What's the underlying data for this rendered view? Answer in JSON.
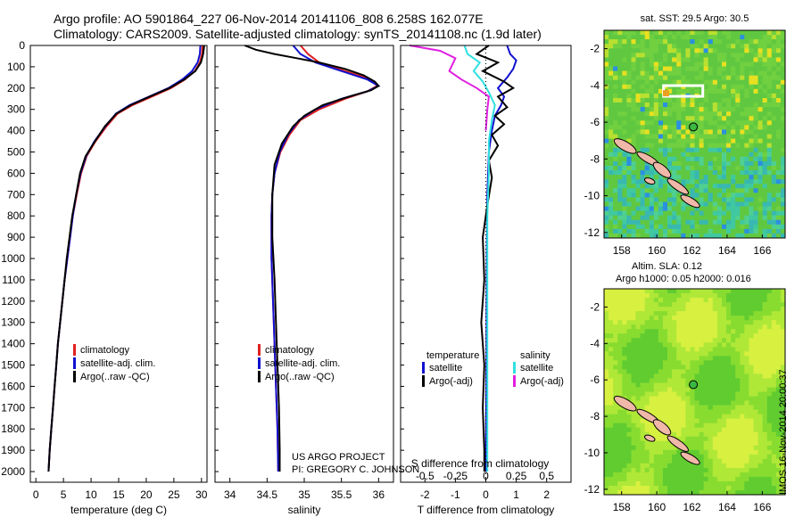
{
  "header": {
    "line1": "Argo profile: AO 5901864_227 06-Nov-2014 20141106_808 6.258S 162.077E",
    "line2": "Climatology: CARS2009. Satellite-adjusted climatology: synTS_20141108.nc (1.9d later)"
  },
  "credit": {
    "line1": "US ARGO PROJECT",
    "line2": "PI: GREGORY C. JOHNSON"
  },
  "stamp": "IMOS 16-Nov-2014 20:00:37",
  "colors": {
    "climatology": "#e02020",
    "satellite": "#1010d0",
    "argo": "#000000",
    "sal_satellite": "#30e0e0",
    "sal_argo": "#e020e0"
  },
  "chart_data": [
    {
      "type": "line",
      "xlabel": "temperature (deg C)",
      "ylabel": "",
      "xlim": [
        -1,
        31
      ],
      "ylim": [
        2050,
        0
      ],
      "y_inverted": true,
      "xticks": [
        0,
        5,
        10,
        15,
        20,
        25,
        30
      ],
      "yticks": [
        0,
        100,
        200,
        300,
        400,
        500,
        600,
        700,
        800,
        900,
        1000,
        1100,
        1200,
        1300,
        1400,
        1500,
        1600,
        1700,
        1800,
        1900,
        2000
      ],
      "legend": [
        "climatology",
        "satellite-adj. clim.",
        "Argo(..raw -QC)"
      ],
      "series": [
        {
          "name": "climatology",
          "color": "#e02020",
          "points": [
            [
              30.2,
              0
            ],
            [
              30.1,
              40
            ],
            [
              29.7,
              80
            ],
            [
              28.8,
              120
            ],
            [
              27.0,
              160
            ],
            [
              24.5,
              200
            ],
            [
              21.0,
              240
            ],
            [
              17.5,
              280
            ],
            [
              14.8,
              320
            ],
            [
              12.8,
              380
            ],
            [
              10.8,
              450
            ],
            [
              9.2,
              520
            ],
            [
              8.2,
              600
            ],
            [
              7.4,
              700
            ],
            [
              6.7,
              800
            ],
            [
              6.2,
              900
            ],
            [
              5.7,
              1000
            ],
            [
              5.2,
              1100
            ],
            [
              4.8,
              1200
            ],
            [
              4.4,
              1300
            ],
            [
              4.0,
              1400
            ],
            [
              3.7,
              1500
            ],
            [
              3.4,
              1600
            ],
            [
              3.1,
              1700
            ],
            [
              2.8,
              1800
            ],
            [
              2.5,
              1900
            ],
            [
              2.3,
              2000
            ]
          ]
        },
        {
          "name": "satellite-adj. clim.",
          "color": "#1010d0",
          "points": [
            [
              29.8,
              0
            ],
            [
              29.7,
              40
            ],
            [
              29.3,
              80
            ],
            [
              28.3,
              120
            ],
            [
              26.5,
              160
            ],
            [
              24.0,
              200
            ],
            [
              20.5,
              240
            ],
            [
              17.0,
              280
            ],
            [
              14.5,
              320
            ],
            [
              12.6,
              380
            ],
            [
              10.6,
              450
            ],
            [
              9.1,
              520
            ],
            [
              8.1,
              600
            ],
            [
              7.3,
              700
            ],
            [
              6.7,
              800
            ],
            [
              6.2,
              900
            ],
            [
              5.7,
              1000
            ],
            [
              5.2,
              1100
            ],
            [
              4.8,
              1200
            ],
            [
              4.4,
              1300
            ],
            [
              4.0,
              1400
            ],
            [
              3.7,
              1500
            ],
            [
              3.4,
              1600
            ],
            [
              3.1,
              1700
            ],
            [
              2.8,
              1800
            ],
            [
              2.5,
              1900
            ],
            [
              2.3,
              2000
            ]
          ]
        },
        {
          "name": "Argo(..raw -QC)",
          "color": "#000000",
          "points": [
            [
              30.5,
              0
            ],
            [
              30.3,
              40
            ],
            [
              29.9,
              80
            ],
            [
              28.9,
              120
            ],
            [
              26.9,
              160
            ],
            [
              24.2,
              200
            ],
            [
              20.6,
              240
            ],
            [
              17.2,
              280
            ],
            [
              14.6,
              320
            ],
            [
              12.5,
              380
            ],
            [
              10.7,
              450
            ],
            [
              9.0,
              520
            ],
            [
              8.0,
              600
            ],
            [
              7.3,
              700
            ],
            [
              6.6,
              800
            ],
            [
              6.1,
              900
            ],
            [
              5.6,
              1000
            ],
            [
              5.2,
              1100
            ],
            [
              4.8,
              1200
            ],
            [
              4.4,
              1300
            ],
            [
              4.0,
              1400
            ],
            [
              3.7,
              1500
            ],
            [
              3.4,
              1600
            ],
            [
              3.1,
              1700
            ],
            [
              2.8,
              1800
            ],
            [
              2.5,
              1900
            ],
            [
              2.3,
              2000
            ]
          ]
        }
      ]
    },
    {
      "type": "line",
      "xlabel": "salinity",
      "xlim": [
        33.8,
        36.2
      ],
      "ylim": [
        2050,
        0
      ],
      "y_inverted": true,
      "xticks": [
        34,
        34.5,
        35,
        35.5,
        36
      ],
      "legend": [
        "climatology",
        "satellite-adj. clim.",
        "Argo(..raw -QC)"
      ],
      "series": [
        {
          "name": "climatology",
          "color": "#e02020",
          "points": [
            [
              34.95,
              0
            ],
            [
              35.05,
              40
            ],
            [
              35.2,
              80
            ],
            [
              35.55,
              120
            ],
            [
              35.9,
              160
            ],
            [
              35.98,
              190
            ],
            [
              35.85,
              215
            ],
            [
              35.55,
              250
            ],
            [
              35.2,
              300
            ],
            [
              34.95,
              350
            ],
            [
              34.8,
              420
            ],
            [
              34.68,
              500
            ],
            [
              34.6,
              600
            ],
            [
              34.57,
              700
            ],
            [
              34.56,
              800
            ],
            [
              34.56,
              1000
            ],
            [
              34.58,
              1200
            ],
            [
              34.6,
              1400
            ],
            [
              34.62,
              1600
            ],
            [
              34.64,
              1800
            ],
            [
              34.65,
              2000
            ]
          ]
        },
        {
          "name": "satellite-adj. clim.",
          "color": "#1010d0",
          "points": [
            [
              34.85,
              0
            ],
            [
              34.95,
              40
            ],
            [
              35.15,
              80
            ],
            [
              35.5,
              120
            ],
            [
              35.85,
              160
            ],
            [
              36.0,
              190
            ],
            [
              35.85,
              215
            ],
            [
              35.5,
              250
            ],
            [
              35.15,
              300
            ],
            [
              34.93,
              350
            ],
            [
              34.78,
              420
            ],
            [
              34.67,
              500
            ],
            [
              34.6,
              600
            ],
            [
              34.57,
              700
            ],
            [
              34.56,
              800
            ],
            [
              34.56,
              1000
            ],
            [
              34.58,
              1200
            ],
            [
              34.6,
              1400
            ],
            [
              34.62,
              1600
            ],
            [
              34.64,
              1800
            ],
            [
              34.65,
              2000
            ]
          ]
        },
        {
          "name": "Argo(..raw -QC)",
          "color": "#000000",
          "points": [
            [
              34.2,
              0
            ],
            [
              34.35,
              20
            ],
            [
              34.6,
              40
            ],
            [
              34.9,
              60
            ],
            [
              35.2,
              80
            ],
            [
              35.55,
              110
            ],
            [
              35.8,
              140
            ],
            [
              35.95,
              170
            ],
            [
              36.0,
              190
            ],
            [
              35.9,
              210
            ],
            [
              35.6,
              240
            ],
            [
              35.25,
              280
            ],
            [
              35.0,
              330
            ],
            [
              34.85,
              380
            ],
            [
              34.7,
              460
            ],
            [
              34.6,
              560
            ],
            [
              34.57,
              700
            ],
            [
              34.57,
              900
            ],
            [
              34.6,
              1100
            ],
            [
              34.62,
              1300
            ],
            [
              34.64,
              1500
            ],
            [
              34.66,
              1700
            ],
            [
              34.67,
              1900
            ],
            [
              34.67,
              2000
            ]
          ]
        }
      ]
    },
    {
      "type": "line",
      "xlabel": "T difference from climatology",
      "xlabel_top": "S difference from climatology",
      "xlim": [
        -2.8,
        2.8
      ],
      "ylim": [
        2050,
        0
      ],
      "y_inverted": true,
      "xticks": [
        -2,
        -1,
        0,
        1,
        2
      ],
      "xticks_top": [
        -0.5,
        -0.25,
        0,
        0.25,
        0.5
      ],
      "legend_titles": [
        "temperature",
        "salinity"
      ],
      "legend": [
        "satellite",
        "Argo(-adj)",
        "satellite",
        "Argo(-adj)"
      ],
      "series": [
        {
          "name": "satellite",
          "group": "temperature",
          "color": "#1010d0",
          "points": [
            [
              0.7,
              0
            ],
            [
              0.8,
              40
            ],
            [
              1.0,
              70
            ],
            [
              0.9,
              110
            ],
            [
              0.7,
              150
            ],
            [
              0.4,
              200
            ],
            [
              0.6,
              240
            ],
            [
              0.5,
              280
            ],
            [
              0.3,
              330
            ],
            [
              0.2,
              400
            ],
            [
              0.1,
              500
            ],
            [
              0.05,
              700
            ],
            [
              0.03,
              1000
            ],
            [
              0.02,
              1500
            ],
            [
              0.0,
              2000
            ]
          ]
        },
        {
          "name": "Argo(-adj)",
          "group": "temperature",
          "color": "#000000",
          "points": [
            [
              0.1,
              0
            ],
            [
              -0.3,
              40
            ],
            [
              0.4,
              80
            ],
            [
              -0.1,
              120
            ],
            [
              0.6,
              170
            ],
            [
              0.9,
              200
            ],
            [
              0.4,
              240
            ],
            [
              0.7,
              290
            ],
            [
              0.3,
              330
            ],
            [
              0.6,
              370
            ],
            [
              0.2,
              420
            ],
            [
              0.4,
              470
            ],
            [
              0.1,
              540
            ],
            [
              0.2,
              620
            ],
            [
              0.05,
              750
            ],
            [
              -0.1,
              900
            ],
            [
              -0.05,
              1100
            ],
            [
              -0.15,
              1300
            ],
            [
              -0.05,
              1500
            ],
            [
              -0.1,
              1700
            ],
            [
              -0.05,
              1900
            ],
            [
              -0.05,
              2000
            ]
          ]
        },
        {
          "name": "satellite",
          "group": "salinity",
          "color": "#30e0e0",
          "points": [
            [
              -0.7,
              0
            ],
            [
              -0.6,
              40
            ],
            [
              -0.2,
              80
            ],
            [
              -0.4,
              120
            ],
            [
              -0.1,
              170
            ],
            [
              0.1,
              220
            ],
            [
              0.3,
              280
            ],
            [
              0.2,
              350
            ],
            [
              0.1,
              450
            ],
            [
              0.1,
              600
            ],
            [
              0.05,
              800
            ],
            [
              0.05,
              1000
            ],
            [
              0.05,
              1300
            ],
            [
              0.05,
              1600
            ],
            [
              0.05,
              2000
            ]
          ]
        },
        {
          "name": "Argo(-adj)",
          "group": "salinity",
          "color": "#e020e0",
          "points": [
            [
              -2.5,
              0
            ],
            [
              -1.5,
              25
            ],
            [
              -1.0,
              60
            ],
            [
              -1.2,
              120
            ],
            [
              -0.8,
              160
            ],
            [
              -0.3,
              200
            ],
            [
              0.1,
              240
            ],
            [
              0.05,
              300
            ],
            [
              0.0,
              400
            ]
          ]
        }
      ]
    },
    {
      "type": "heatmap",
      "title": "sat. SST: 29.5 Argo: 30.5",
      "xlim": [
        157,
        167.3
      ],
      "ylim": [
        -12.3,
        -1
      ],
      "xticks": [
        158,
        160,
        162,
        164,
        166
      ],
      "yticks": [
        -2,
        -4,
        -6,
        -8,
        -10,
        -12
      ],
      "marker": {
        "lon": 162.077,
        "lat": -6.258
      }
    },
    {
      "type": "heatmap",
      "title": "Altim. SLA: 0.12",
      "subtitle": "Argo h1000: 0.05 h2000: 0.016",
      "xlim": [
        157,
        167.3
      ],
      "ylim": [
        -12.3,
        -1
      ],
      "xticks": [
        158,
        160,
        162,
        164,
        166
      ],
      "yticks": [
        -2,
        -4,
        -6,
        -8,
        -10,
        -12
      ],
      "marker": {
        "lon": 162.077,
        "lat": -6.258
      }
    }
  ]
}
